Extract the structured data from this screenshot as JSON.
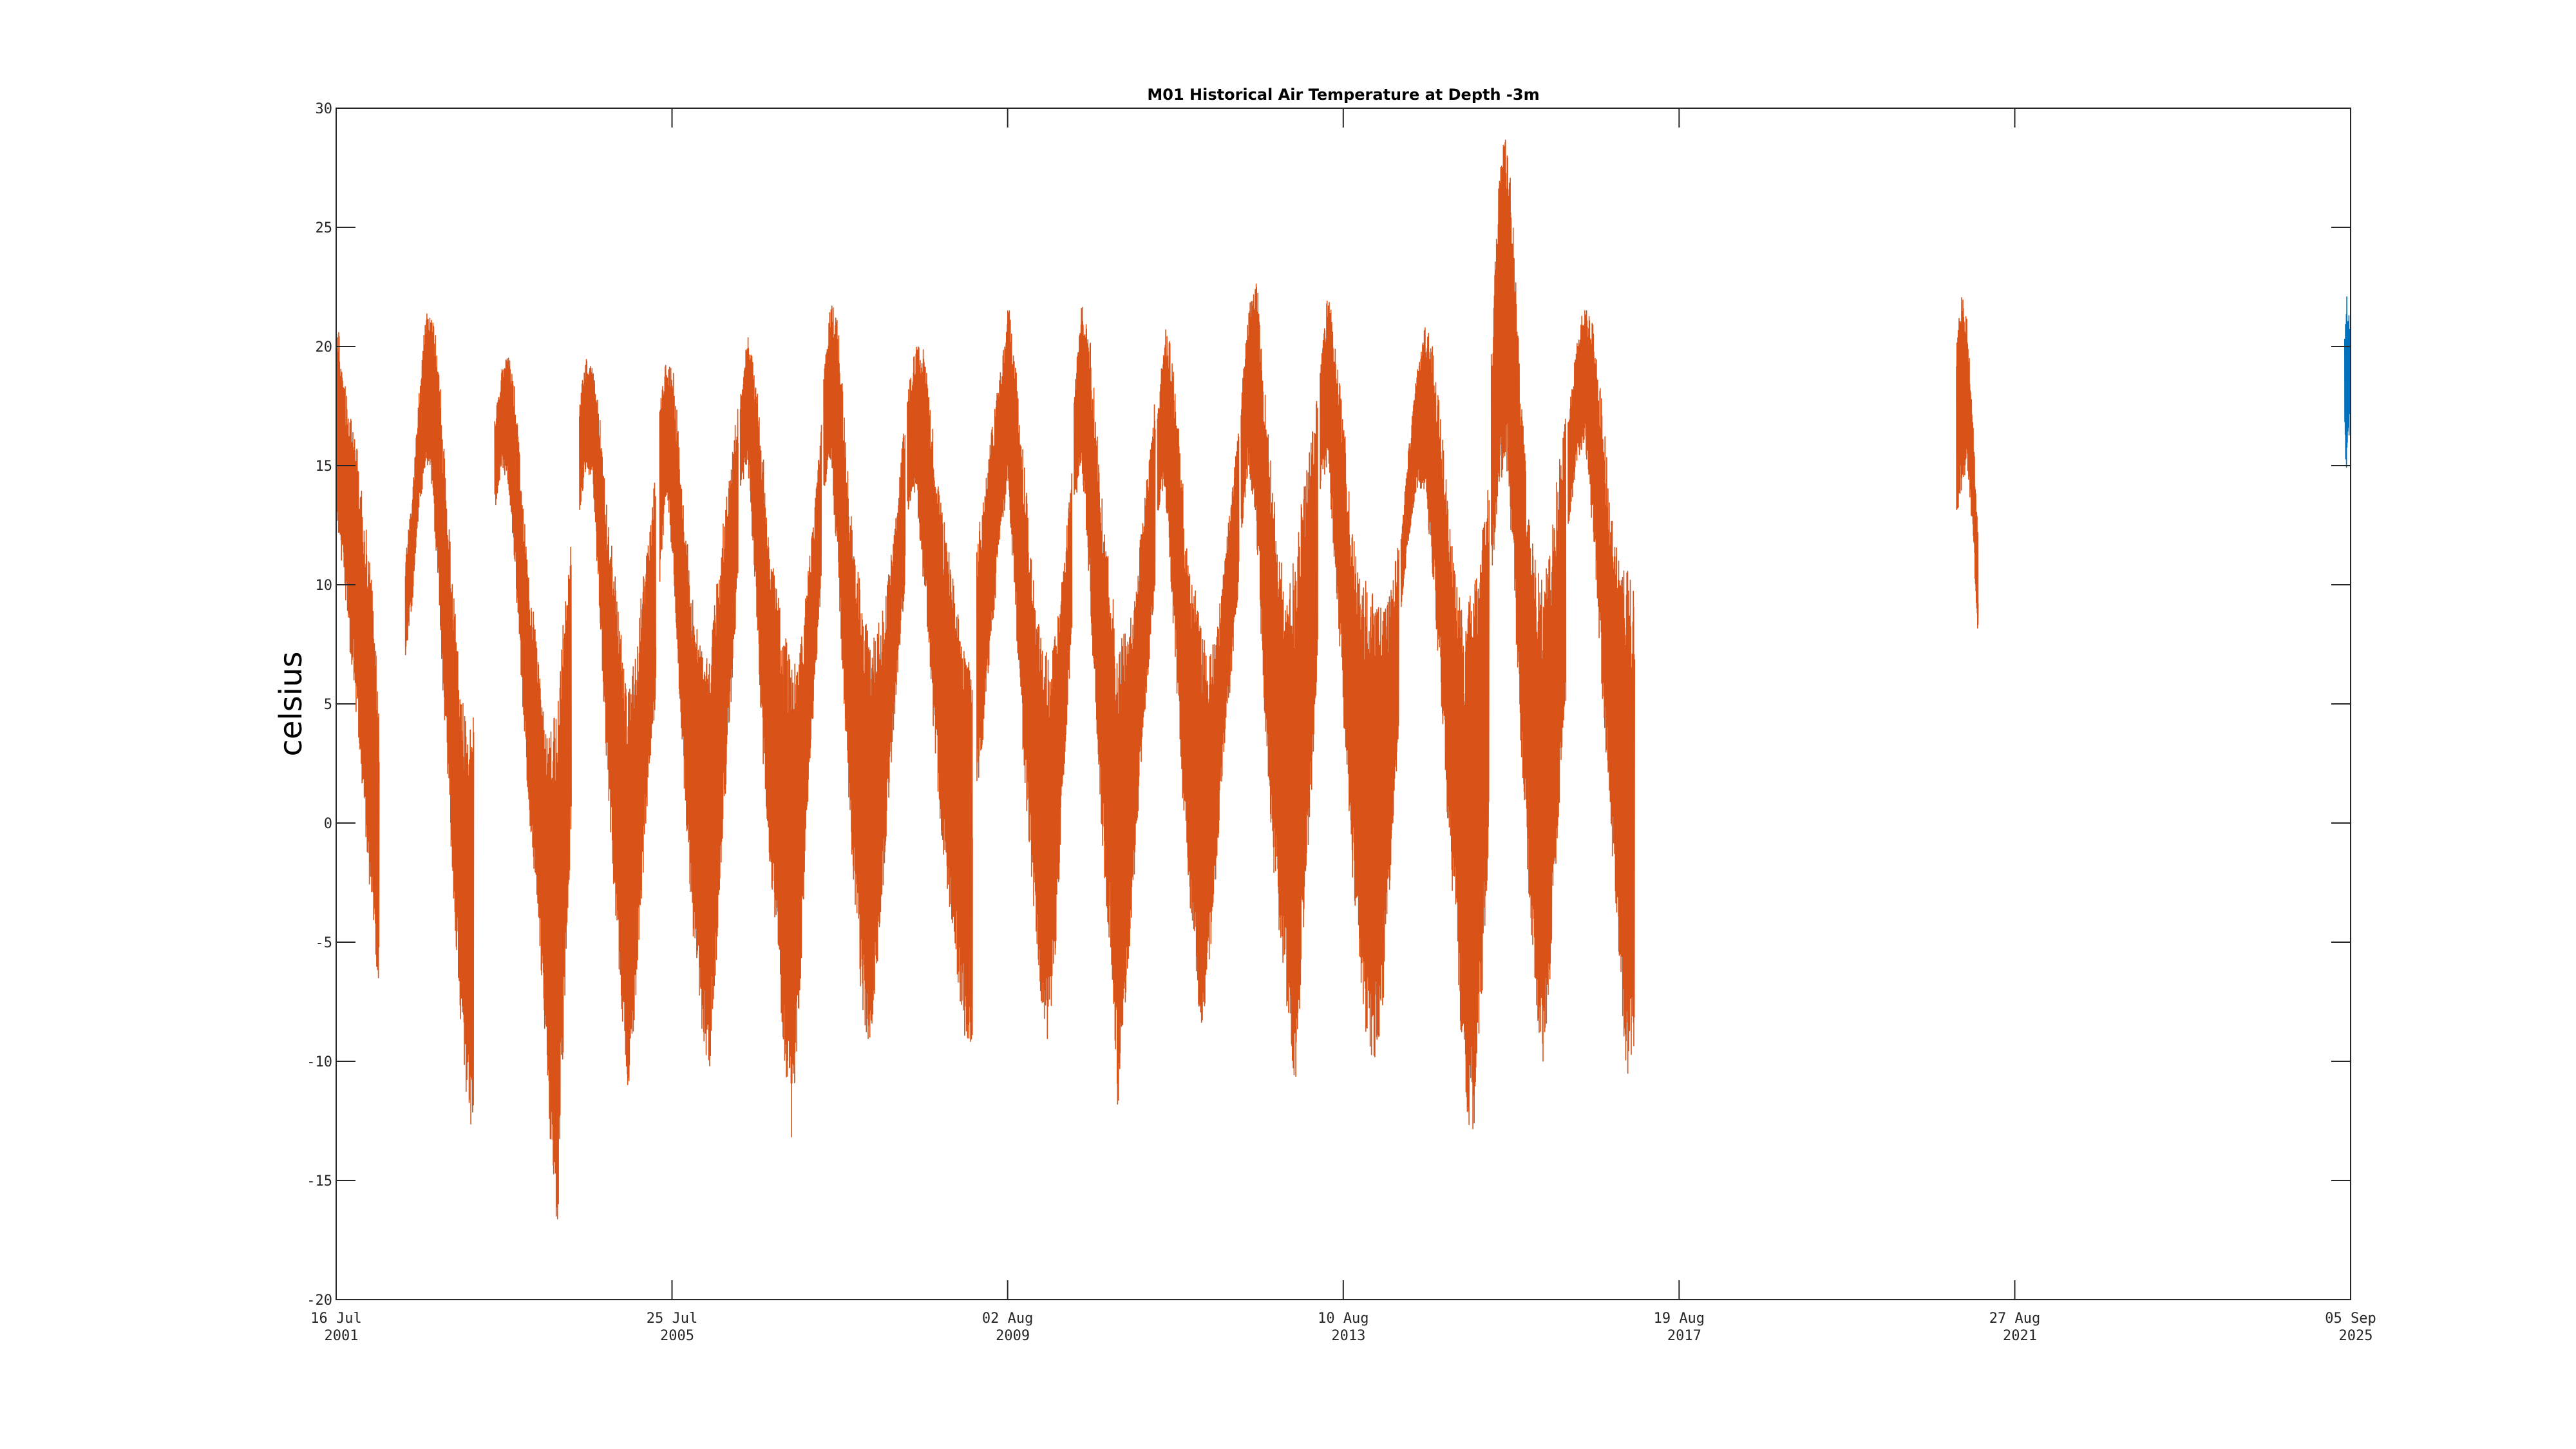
{
  "chart_data": {
    "type": "line",
    "title": "M01 Historical Air Temperature at Depth -3m",
    "xlabel": "",
    "ylabel": "celsius",
    "ylim": [
      -20,
      30
    ],
    "yticks": [
      -20,
      -15,
      -10,
      -5,
      0,
      5,
      10,
      15,
      20,
      25,
      30
    ],
    "xlim": [
      "2001-07-16",
      "2025-09-05"
    ],
    "xticks": [
      {
        "date": "2001-07-16",
        "line1": "16 Jul",
        "line2": "2001"
      },
      {
        "date": "2005-07-25",
        "line1": "25 Jul",
        "line2": "2005"
      },
      {
        "date": "2009-08-02",
        "line1": "02 Aug",
        "line2": "2009"
      },
      {
        "date": "2013-08-10",
        "line1": "10 Aug",
        "line2": "2013"
      },
      {
        "date": "2017-08-19",
        "line1": "19 Aug",
        "line2": "2017"
      },
      {
        "date": "2021-08-27",
        "line1": "27 Aug",
        "line2": "2021"
      },
      {
        "date": "2025-09-05",
        "line1": "05 Sep",
        "line2": "2025"
      }
    ],
    "grid": false,
    "series": [
      {
        "color": "#D95319",
        "segments": [
          {
            "start": "2001-07-16",
            "end": "2002-01-20",
            "max": [
              21.5,
              19,
              17,
              16,
              13,
              10,
              5
            ],
            "min": [
              13,
              10,
              7,
              4,
              0,
              -4,
              -7.5
            ]
          },
          {
            "start": "2002-05-15",
            "end": "2003-03-10",
            "max": [
              11,
              14,
              18,
              21.5,
              21.5,
              19,
              14,
              10,
              6,
              4,
              6
            ],
            "min": [
              7,
              9,
              13,
              15,
              14,
              8,
              3,
              -3,
              -8,
              -12.5,
              -12.8
            ]
          },
          {
            "start": "2003-06-10",
            "end": "2004-05-10",
            "max": [
              17,
              19,
              20,
              18,
              14,
              10,
              8,
              5,
              4,
              6,
              9,
              12.5
            ],
            "min": [
              13,
              15,
              14,
              10,
              5,
              0,
              -3,
              -8,
              -13.5,
              -17.5,
              -8,
              0
            ]
          },
          {
            "start": "2004-06-15",
            "end": "2005-05-15",
            "max": [
              18,
              19.5,
              19,
              17,
              13,
              11,
              8,
              6,
              7,
              10,
              12,
              15
            ],
            "min": [
              13,
              15,
              14,
              8,
              2,
              -3,
              -7.5,
              -11.5,
              -8,
              -3,
              2,
              5
            ]
          },
          {
            "start": "2005-06-01",
            "end": "2006-05-10",
            "max": [
              18,
              19.5,
              19,
              15,
              12,
              9,
              7,
              8,
              10,
              13,
              15,
              18
            ],
            "min": [
              10,
              14,
              10,
              4,
              -2,
              -6,
              -9,
              -10.5,
              -6,
              0,
              5,
              10
            ]
          },
          {
            "start": "2006-05-20",
            "end": "2007-05-10",
            "max": [
              18,
              20.5,
              19,
              16,
              12,
              10,
              8,
              7,
              7,
              10,
              13,
              17
            ],
            "min": [
              14,
              15,
              10,
              3,
              -2,
              -6,
              -11,
              -13.5,
              -8,
              0,
              5,
              10
            ]
          },
          {
            "start": "2007-05-20",
            "end": "2008-05-10",
            "max": [
              19,
              22,
              21,
              16,
              12,
              10,
              8,
              8,
              9,
              11,
              14,
              17
            ],
            "min": [
              14,
              15,
              10,
              3,
              -3,
              -7,
              -10,
              -7,
              -3,
              2,
              6,
              10
            ]
          },
          {
            "start": "2008-05-20",
            "end": "2009-03-01",
            "max": [
              18,
              20,
              20,
              17,
              14,
              12,
              10,
              8,
              6
            ],
            "min": [
              13,
              14,
              10,
              5,
              0,
              -3,
              -6,
              -9,
              -9.3
            ]
          },
          {
            "start": "2009-03-20",
            "end": "2010-05-10",
            "max": [
              12,
              14,
              17,
              19,
              22,
              19,
              15,
              11,
              8,
              7,
              8,
              11,
              15
            ],
            "min": [
              1,
              4,
              8,
              12,
              14,
              8,
              2,
              -3,
              -8,
              -9.5,
              -5,
              2,
              8
            ]
          },
          {
            "start": "2010-05-20",
            "end": "2011-05-10",
            "max": [
              18,
              22,
              21,
              17,
              13,
              10,
              8,
              8,
              9,
              12,
              15,
              18
            ],
            "min": [
              13,
              15,
              10,
              4,
              -2,
              -6,
              -12.5,
              -8,
              -3,
              2,
              6,
              10
            ]
          },
          {
            "start": "2011-05-20",
            "end": "2012-05-10",
            "max": [
              17,
              21,
              20,
              16,
              12,
              10,
              8,
              7,
              8,
              11,
              14,
              17
            ],
            "min": [
              13,
              14,
              9,
              3,
              -2,
              -6,
              -9,
              -6,
              -2,
              3,
              6,
              10
            ]
          },
          {
            "start": "2012-05-20",
            "end": "2013-04-20",
            "max": [
              18,
              22,
              23,
              19,
              15,
              12,
              10,
              12,
              14,
              16,
              18
            ],
            "min": [
              12,
              15,
              12,
              5,
              -1,
              -5,
              -8,
              -11.5,
              -6,
              0,
              6
            ]
          },
          {
            "start": "2013-05-01",
            "end": "2014-04-10",
            "max": [
              19,
              22.5,
              20,
              17,
              13,
              11,
              10,
              10,
              9,
              10,
              12
            ],
            "min": [
              14,
              15,
              10,
              4,
              -2,
              -6,
              -9.8,
              -10,
              -8,
              -2,
              4
            ]
          },
          {
            "start": "2014-04-20",
            "end": "2015-05-10",
            "max": [
              12,
              16,
              19,
              21,
              20,
              17,
              13,
              10,
              9,
              10,
              12,
              15
            ],
            "min": [
              9,
              12,
              14,
              14,
              10,
              5,
              -1,
              -6,
              -12,
              -13.5,
              -8,
              -2
            ]
          },
          {
            "start": "2015-05-20",
            "end": "2016-04-10",
            "max": [
              20,
              27,
              29.5,
              25,
              18,
              13,
              11,
              10,
              12,
              15,
              17
            ],
            "min": [
              10,
              14,
              15,
              10,
              3,
              -3,
              -8,
              -10.5,
              -6,
              0,
              5
            ]
          },
          {
            "start": "2016-04-20",
            "end": "2017-02-05",
            "max": [
              17,
              20,
              22,
              21,
              18,
              14,
              12,
              11,
              9.5
            ],
            "min": [
              12,
              15,
              16,
              12,
              6,
              0,
              -5,
              -11,
              -9.5
            ]
          },
          {
            "start": "2020-12-15",
            "end": "2021-03-20",
            "max": [
              20,
              22.5,
              21,
              17,
              12
            ],
            "min": [
              12.5,
              14,
              15,
              12,
              7.5
            ]
          }
        ]
      },
      {
        "color": "#0072BD",
        "segments": [
          {
            "start": "2025-08-10",
            "end": "2025-09-05",
            "max": [
              21,
              22.7,
              21.5,
              20.5
            ],
            "min": [
              16,
              14.5,
              16,
              17
            ]
          }
        ]
      }
    ]
  }
}
